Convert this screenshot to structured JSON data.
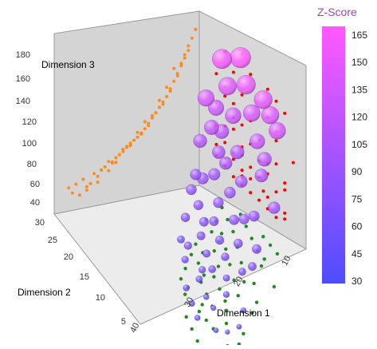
{
  "chart_data": {
    "type": "scatter",
    "subtype": "3d-bubble-with-wall-projections",
    "xlabel": "Dimension 1",
    "ylabel": "Dimension 2",
    "zlabel": "Dimension 3",
    "xlim": [
      5,
      45
    ],
    "ylim": [
      5,
      30
    ],
    "zlim": [
      30,
      180
    ],
    "x_ticks": [
      "10",
      "20",
      "30",
      "40"
    ],
    "y_ticks": [
      "5",
      "10",
      "15",
      "20",
      "25",
      "30"
    ],
    "z_ticks": [
      "40",
      "60",
      "80",
      "100",
      "120",
      "140",
      "160",
      "180"
    ],
    "colorbar": {
      "title": "Z-Score",
      "ticks": [
        "165",
        "150",
        "135",
        "120",
        "105",
        "90",
        "75",
        "60",
        "45",
        "30"
      ],
      "range": [
        30,
        165
      ],
      "color_low": "#4d4dff",
      "color_high": "#ff59ff"
    },
    "projection_colors": {
      "x-z wall": "#ff8c1a",
      "y-z wall": "#ff0000",
      "floor": "#1f8a1f"
    },
    "grid": false,
    "points": [
      {
        "x": 40,
        "y": 14,
        "z": 45
      },
      {
        "x": 38,
        "y": 12,
        "z": 42
      },
      {
        "x": 36,
        "y": 16,
        "z": 48
      },
      {
        "x": 41,
        "y": 18,
        "z": 50
      },
      {
        "x": 39,
        "y": 20,
        "z": 52
      },
      {
        "x": 37,
        "y": 22,
        "z": 55
      },
      {
        "x": 35,
        "y": 18,
        "z": 50
      },
      {
        "x": 33,
        "y": 14,
        "z": 55
      },
      {
        "x": 34,
        "y": 20,
        "z": 58
      },
      {
        "x": 32,
        "y": 24,
        "z": 60
      },
      {
        "x": 31,
        "y": 18,
        "z": 62
      },
      {
        "x": 30,
        "y": 15,
        "z": 58
      },
      {
        "x": 36,
        "y": 10,
        "z": 45
      },
      {
        "x": 33,
        "y": 10,
        "z": 50
      },
      {
        "x": 29,
        "y": 20,
        "z": 65
      },
      {
        "x": 28,
        "y": 16,
        "z": 68
      },
      {
        "x": 30,
        "y": 24,
        "z": 66
      },
      {
        "x": 27,
        "y": 22,
        "z": 70
      },
      {
        "x": 26,
        "y": 18,
        "z": 72
      },
      {
        "x": 28,
        "y": 12,
        "z": 64
      },
      {
        "x": 25,
        "y": 14,
        "z": 75
      },
      {
        "x": 24,
        "y": 20,
        "z": 78
      },
      {
        "x": 23,
        "y": 24,
        "z": 80
      },
      {
        "x": 26,
        "y": 26,
        "z": 74
      },
      {
        "x": 22,
        "y": 16,
        "z": 82
      },
      {
        "x": 21,
        "y": 20,
        "z": 85
      },
      {
        "x": 24,
        "y": 10,
        "z": 76
      },
      {
        "x": 20,
        "y": 12,
        "z": 88
      },
      {
        "x": 19,
        "y": 18,
        "z": 92
      },
      {
        "x": 22,
        "y": 26,
        "z": 86
      },
      {
        "x": 18,
        "y": 22,
        "z": 96
      },
      {
        "x": 17,
        "y": 16,
        "z": 100
      },
      {
        "x": 20,
        "y": 24,
        "z": 94
      },
      {
        "x": 16,
        "y": 20,
        "z": 104
      },
      {
        "x": 15,
        "y": 12,
        "z": 108
      },
      {
        "x": 18,
        "y": 8,
        "z": 98
      },
      {
        "x": 14,
        "y": 18,
        "z": 112
      },
      {
        "x": 13,
        "y": 22,
        "z": 118
      },
      {
        "x": 16,
        "y": 26,
        "z": 110
      },
      {
        "x": 12,
        "y": 14,
        "z": 124
      },
      {
        "x": 11,
        "y": 20,
        "z": 130
      },
      {
        "x": 14,
        "y": 24,
        "z": 120
      },
      {
        "x": 10,
        "y": 16,
        "z": 138
      },
      {
        "x": 9,
        "y": 22,
        "z": 145
      },
      {
        "x": 12,
        "y": 26,
        "z": 135
      },
      {
        "x": 8,
        "y": 18,
        "z": 152
      },
      {
        "x": 9,
        "y": 12,
        "z": 142
      },
      {
        "x": 7,
        "y": 24,
        "z": 158
      },
      {
        "x": 6,
        "y": 20,
        "z": 165
      },
      {
        "x": 10,
        "y": 10,
        "z": 136
      },
      {
        "x": 21,
        "y": 14,
        "z": 84
      },
      {
        "x": 25,
        "y": 22,
        "z": 76
      },
      {
        "x": 29,
        "y": 26,
        "z": 64
      },
      {
        "x": 32,
        "y": 20,
        "z": 60
      },
      {
        "x": 27,
        "y": 10,
        "z": 70
      },
      {
        "x": 19,
        "y": 26,
        "z": 90
      },
      {
        "x": 15,
        "y": 22,
        "z": 106
      },
      {
        "x": 13,
        "y": 12,
        "z": 116
      },
      {
        "x": 11,
        "y": 24,
        "z": 128
      },
      {
        "x": 8,
        "y": 14,
        "z": 148
      }
    ]
  }
}
